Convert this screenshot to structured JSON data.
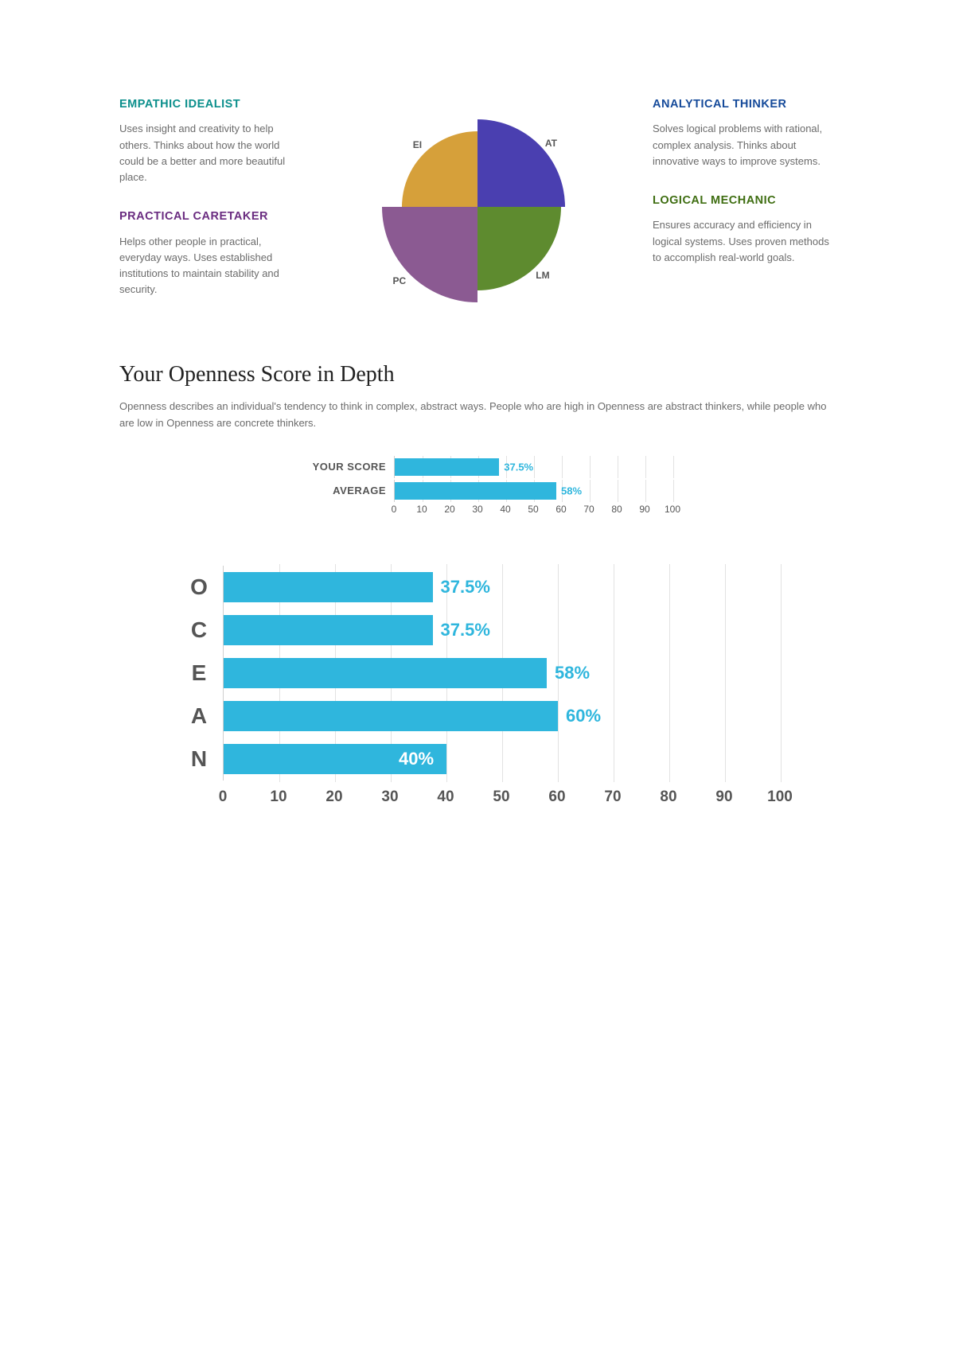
{
  "quadrants": {
    "ei": {
      "title": "EMPATHIC IDEALIST",
      "desc": "Uses insight and creativity to help others. Thinks about how the world could be a better and more beautiful place.",
      "abbr": "EI",
      "title_color": "#0b8f8c",
      "slice_color": "#d6a03a"
    },
    "pc": {
      "title": "PRACTICAL CARETAKER",
      "desc": "Helps other people in practical, everyday ways. Uses established institutions to maintain stability and security.",
      "abbr": "PC",
      "title_color": "#6a2c80",
      "slice_color": "#8b5a92"
    },
    "at": {
      "title": "ANALYTICAL THINKER",
      "desc": "Solves logical problems with rational, complex analysis. Thinks about innovative ways to improve systems.",
      "abbr": "AT",
      "title_color": "#154a9a",
      "slice_color": "#4a3fb0"
    },
    "lm": {
      "title": "LOGICAL MECHANIC",
      "desc": "Ensures accuracy and efficiency in logical systems. Uses proven methods to accomplish real-world goals.",
      "abbr": "LM",
      "title_color": "#3f6e12",
      "slice_color": "#5e8b2f"
    }
  },
  "pie": {
    "radii": {
      "ei": 95,
      "at": 110,
      "lm": 105,
      "pc": 120
    },
    "center_shadow": "#c9c9c9",
    "label_color": "#555555",
    "label_fontsize": 12
  },
  "openness": {
    "heading": "Your Openness Score in Depth",
    "description": "Openness describes an individual's tendency to think in complex, abstract ways. People who are high in Openness are abstract thinkers, while people who are low in Openness are concrete thinkers.",
    "chart": {
      "type": "bar",
      "xlim": [
        0,
        100
      ],
      "xtick_step": 10,
      "bar_color": "#2fb6dd",
      "value_color_on_bar": "#ffffff",
      "value_color_off_bar": "#2fb6dd",
      "grid_color": "#e2e2e2",
      "axis_color": "#cfcfcf",
      "label_color": "#555555",
      "rows": [
        {
          "label": "YOUR SCORE",
          "value": 37.5,
          "display": "37.5%",
          "value_inside": false
        },
        {
          "label": "AVERAGE",
          "value": 58,
          "display": "58%",
          "value_inside": false
        }
      ]
    }
  },
  "ocean": {
    "type": "bar",
    "xlim": [
      0,
      100
    ],
    "xtick_step": 10,
    "bar_color": "#2fb6dd",
    "value_color_on_bar": "#ffffff",
    "value_color_off_bar": "#2fb6dd",
    "grid_color": "#e2e2e2",
    "axis_color": "#cfcfcf",
    "label_color": "#555555",
    "label_fontsize": 28,
    "value_fontsize": 22,
    "rows": [
      {
        "label": "O",
        "value": 37.5,
        "display": "37.5%",
        "value_inside": false
      },
      {
        "label": "C",
        "value": 37.5,
        "display": "37.5%",
        "value_inside": false
      },
      {
        "label": "E",
        "value": 58,
        "display": "58%",
        "value_inside": false
      },
      {
        "label": "A",
        "value": 60,
        "display": "60%",
        "value_inside": false
      },
      {
        "label": "N",
        "value": 40,
        "display": "40%",
        "value_inside": true
      }
    ]
  }
}
